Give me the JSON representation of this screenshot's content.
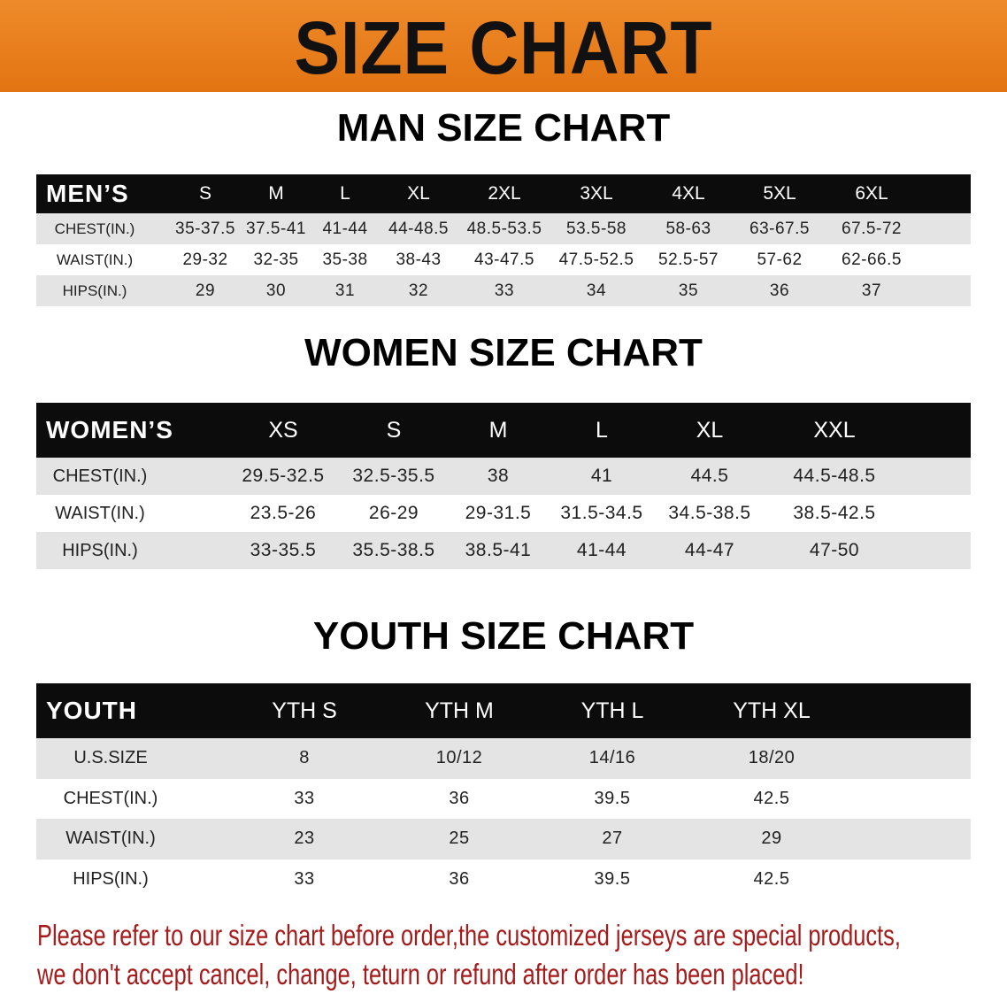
{
  "banner_title": "SIZE CHART",
  "men": {
    "title": "MAN SIZE CHART",
    "header": [
      "MEN’S",
      "S",
      "M",
      "L",
      "XL",
      "2XL",
      "3XL",
      "4XL",
      "5XL",
      "6XL"
    ],
    "rows": [
      [
        "CHEST(IN.)",
        "35-37.5",
        "37.5-41",
        "41-44",
        "44-48.5",
        "48.5-53.5",
        "53.5-58",
        "58-63",
        "63-67.5",
        "67.5-72"
      ],
      [
        "WAIST(IN.)",
        "29-32",
        "32-35",
        "35-38",
        "38-43",
        "43-47.5",
        "47.5-52.5",
        "52.5-57",
        "57-62",
        "62-66.5"
      ],
      [
        "HIPS(IN.)",
        "29",
        "30",
        "31",
        "32",
        "33",
        "34",
        "35",
        "36",
        "37"
      ]
    ]
  },
  "women": {
    "title": "WOMEN SIZE CHART",
    "header": [
      "WOMEN’S",
      "XS",
      "S",
      "M",
      "L",
      "XL",
      "XXL"
    ],
    "rows": [
      [
        "CHEST(IN.)",
        "29.5-32.5",
        "32.5-35.5",
        "38",
        "41",
        "44.5",
        "44.5-48.5"
      ],
      [
        "WAIST(IN.)",
        "23.5-26",
        "26-29",
        "29-31.5",
        "31.5-34.5",
        "34.5-38.5",
        "38.5-42.5"
      ],
      [
        "HIPS(IN.)",
        "33-35.5",
        "35.5-38.5",
        "38.5-41",
        "41-44",
        "44-47",
        "47-50"
      ]
    ]
  },
  "youth": {
    "title": "YOUTH SIZE CHART",
    "header": [
      "YOUTH",
      "YTH S",
      "YTH M",
      "YTH L",
      "YTH XL"
    ],
    "rows": [
      [
        "U.S.SIZE",
        "8",
        "10/12",
        "14/16",
        "18/20"
      ],
      [
        "CHEST(IN.)",
        "33",
        "36",
        "39.5",
        "42.5"
      ],
      [
        "WAIST(IN.)",
        "23",
        "25",
        "27",
        "29"
      ],
      [
        "HIPS(IN.)",
        "33",
        "36",
        "39.5",
        "42.5"
      ]
    ]
  },
  "notice": {
    "line1": "Please refer to our size chart before order,the customized jerseys are special products,",
    "line2": "we don't accept cancel, change, teturn or refund after order has been placed!"
  },
  "colors": {
    "banner": "#e87d1c",
    "header_row": "#0c0c0c",
    "stripe": "#e4e4e4",
    "notice": "#a51b1b"
  }
}
